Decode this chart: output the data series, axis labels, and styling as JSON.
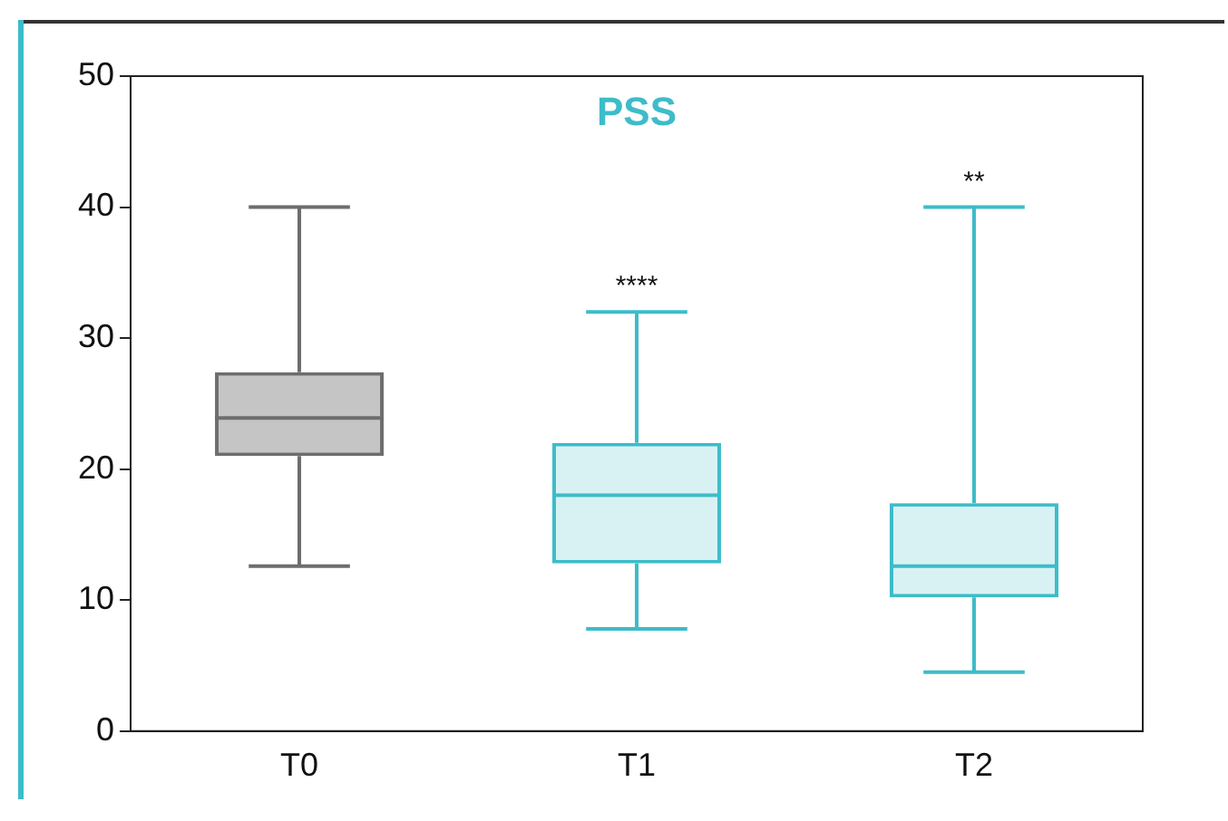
{
  "chart_data": {
    "type": "box",
    "title": "PSS",
    "categories": [
      "T0",
      "T1",
      "T2"
    ],
    "colors": [
      "#6d6d6d",
      "#3dbcc9",
      "#3dbcc9"
    ],
    "boxes": [
      {
        "low": 12.6,
        "q1": 21,
        "median": 23.9,
        "q3": 27.4,
        "high": 40
      },
      {
        "low": 7.8,
        "q1": 12.8,
        "median": 18,
        "q3": 22,
        "high": 32
      },
      {
        "low": 4.5,
        "q1": 10.2,
        "median": 12.6,
        "q3": 17.4,
        "high": 40
      }
    ],
    "ylim": [
      0,
      50
    ],
    "yticks": [
      0,
      10,
      20,
      30,
      40,
      50
    ],
    "annotations": [
      {
        "text": "****",
        "x": "T1",
        "y": 32
      },
      {
        "text": "**",
        "x": "T2",
        "y": 40
      }
    ],
    "grid": false,
    "legend": false
  }
}
